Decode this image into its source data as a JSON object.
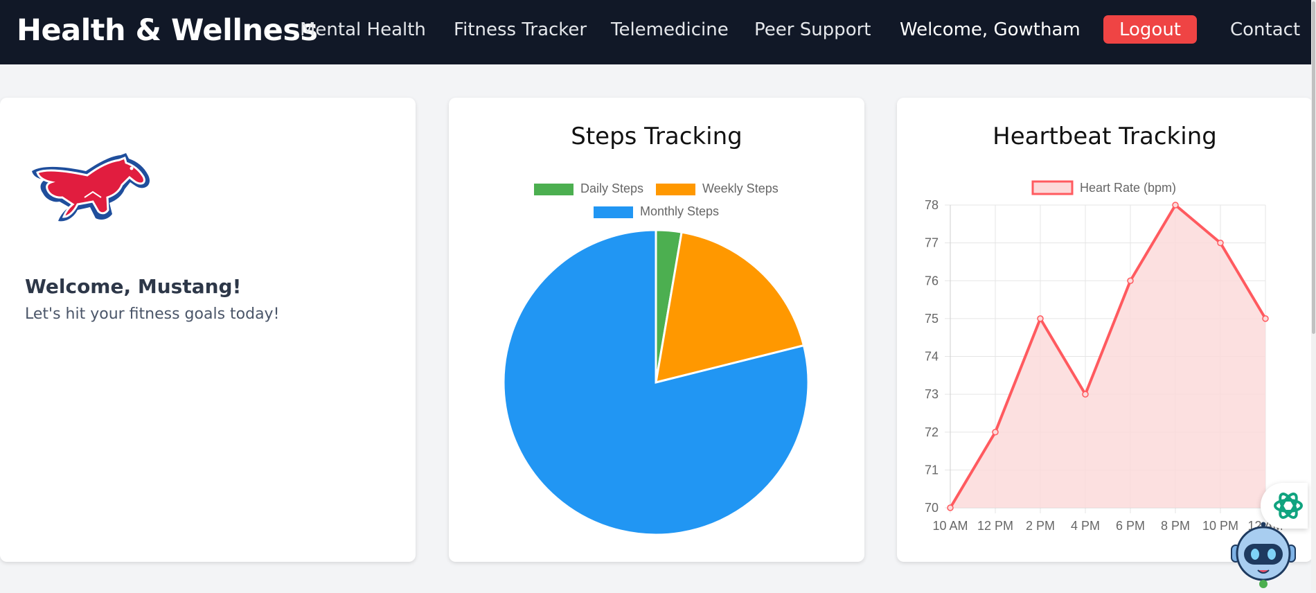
{
  "nav": {
    "brand": "Health & Wellness",
    "links": [
      "Mental Health",
      "Fitness Tracker",
      "Telemedicine",
      "Peer Support"
    ],
    "welcome": "Welcome, Gowtham",
    "logout": "Logout",
    "contact": "Contact"
  },
  "welcome_card": {
    "logo_icon": "mustang-logo",
    "title": "Welcome, Mustang!",
    "subtitle": "Let's hit your fitness goals today!"
  },
  "steps_card": {
    "title": "Steps Tracking"
  },
  "heart_card": {
    "title": "Heartbeat Tracking"
  },
  "colors": {
    "nav_bg": "#111827",
    "logout_bg": "#ef4444",
    "daily": "#4caf50",
    "weekly": "#ff9800",
    "monthly": "#2196f3",
    "heart_line": "#ff5a5f",
    "heart_fill": "#fcdada"
  },
  "chart_data": [
    {
      "type": "pie",
      "title": "Steps Tracking",
      "categories": [
        "Daily Steps",
        "Weekly Steps",
        "Monthly Steps"
      ],
      "values": [
        2.7,
        18.4,
        78.9
      ],
      "colors": [
        "#4caf50",
        "#ff9800",
        "#2196f3"
      ],
      "legend": "top"
    },
    {
      "type": "area",
      "title": "Heartbeat Tracking",
      "x": [
        "10 AM",
        "12 PM",
        "2 PM",
        "4 PM",
        "6 PM",
        "8 PM",
        "10 PM",
        "12 AM"
      ],
      "series": [
        {
          "name": "Heart Rate (bpm)",
          "values": [
            70,
            72,
            75,
            73,
            76,
            78,
            77,
            75
          ]
        }
      ],
      "ylim": [
        70,
        78
      ],
      "yticks": [
        70,
        71,
        72,
        73,
        74,
        75,
        76,
        77,
        78
      ],
      "grid": true,
      "legend": "top"
    }
  ],
  "widgets": {
    "assistant_icon": "ai-assistant-icon",
    "robot_icon": "robot-avatar-icon"
  }
}
